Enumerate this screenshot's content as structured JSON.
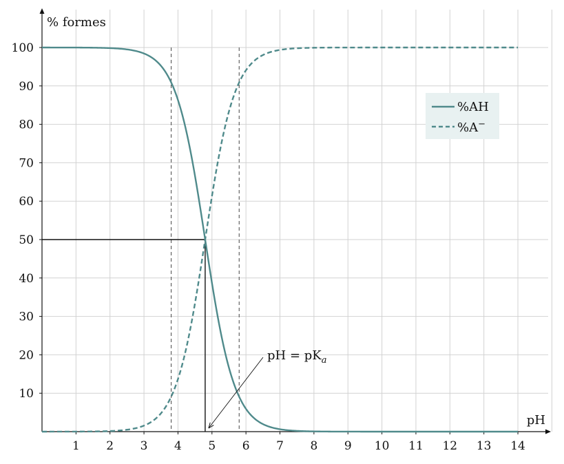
{
  "chart_data": {
    "type": "line",
    "ylabel": "% formes",
    "xlabel": "pH",
    "xlim": [
      0,
      15
    ],
    "ylim": [
      0,
      110
    ],
    "x_ticks": [
      1,
      2,
      3,
      4,
      5,
      6,
      7,
      8,
      9,
      10,
      11,
      12,
      13,
      14
    ],
    "y_ticks": [
      10,
      20,
      30,
      40,
      50,
      60,
      70,
      80,
      90,
      100
    ],
    "grid": true,
    "pKa": 4.8,
    "x_range": [
      0,
      14
    ],
    "series": [
      {
        "name": "%AH",
        "style": "solid",
        "color": "#4f8a8b",
        "formula": "100/(1+10^(pH-pKa))"
      },
      {
        "name": "%A",
        "name_superscript": "−",
        "style": "dashed",
        "color": "#4f8a8b",
        "formula": "100/(1+10^(pKa-pH))"
      }
    ],
    "legend_position": "top-right",
    "reference_lines": {
      "vertical_dashed_x": [
        3.8,
        5.8
      ],
      "half_point": {
        "x": 4.8,
        "y": 50
      }
    },
    "annotation": {
      "text": "pH = pK",
      "subscript": "a",
      "target_x": 4.8,
      "target_y": 0
    }
  }
}
